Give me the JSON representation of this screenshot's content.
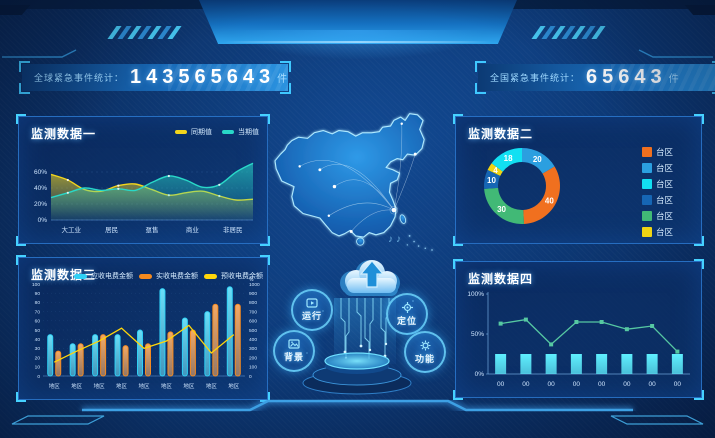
{
  "header": {
    "left_counter": {
      "label": "全球紧急事件统计：",
      "value": "143565643",
      "unit": "件"
    },
    "right_counter": {
      "label": "全国紧急事件统计：",
      "value": "65643",
      "unit": "件"
    }
  },
  "center": {
    "buttons": [
      {
        "label": "运行",
        "icon": "run-icon"
      },
      {
        "label": "定位",
        "icon": "locate-icon"
      },
      {
        "label": "背景",
        "icon": "background-icon"
      },
      {
        "label": "功能",
        "icon": "function-icon"
      }
    ]
  },
  "colors": {
    "accent_cyan": "#3fc8ff",
    "panel_border": "#2d7dd7",
    "background": "#0d3a78"
  },
  "chart_data": [
    {
      "id": "c1",
      "type": "area",
      "title": "监测数据一",
      "legend": [
        {
          "name": "同期值",
          "color": "#f2d51c"
        },
        {
          "name": "当期值",
          "color": "#29d8c8"
        }
      ],
      "categories": [
        "大工业",
        "居民",
        "趸售",
        "商业",
        "非居民"
      ],
      "y_ticks": [
        {
          "v": 0,
          "label": "0%"
        },
        {
          "v": 20,
          "label": "20%"
        },
        {
          "v": 40,
          "label": "40%"
        },
        {
          "v": 60,
          "label": "60%"
        }
      ],
      "y_max": 85,
      "series": [
        {
          "name": "同期值",
          "color": "#f2d51c",
          "values": [
            57,
            50,
            38,
            36,
            43,
            45,
            38,
            31,
            34,
            36,
            30,
            25,
            26
          ]
        },
        {
          "name": "当期值",
          "color": "#29d8c8",
          "values": [
            28,
            34,
            40,
            37,
            39,
            37,
            47,
            55,
            50,
            41,
            44,
            60,
            71
          ]
        }
      ]
    },
    {
      "id": "c2",
      "type": "pie",
      "title": "监测数据二",
      "slices": [
        {
          "label": "台区",
          "value": 20,
          "color": "#2b9fe0"
        },
        {
          "label": "台区",
          "value": 40,
          "color": "#f0701f"
        },
        {
          "label": "台区",
          "value": 30,
          "color": "#41b976"
        },
        {
          "label": "台区",
          "value": 10,
          "color": "#1666b4"
        },
        {
          "label": "台区",
          "value": 4,
          "color": "#efd414"
        },
        {
          "label": "台区",
          "value": 18,
          "color": "#12e0f2"
        }
      ],
      "legend": [
        {
          "name": "台区",
          "color": "#f0701f"
        },
        {
          "name": "台区",
          "color": "#2b9fe0"
        },
        {
          "name": "台区",
          "color": "#12e0f2"
        },
        {
          "name": "台区",
          "color": "#1666b4"
        },
        {
          "name": "台区",
          "color": "#41b976"
        },
        {
          "name": "台区",
          "color": "#efd414"
        }
      ]
    },
    {
      "id": "c3",
      "type": "bar-line",
      "title": "监测数据三",
      "legend": [
        {
          "name": "应收电费金额",
          "color": "#2fd0f5"
        },
        {
          "name": "实收电费金额",
          "color": "#f58a1f"
        },
        {
          "name": "预收电费余额",
          "color": "#ffd60a"
        }
      ],
      "categories": [
        "地区",
        "地区",
        "地区",
        "地区",
        "地区",
        "地区",
        "地区",
        "地区",
        "地区"
      ],
      "left_axis": {
        "min": 0,
        "max": 100,
        "step": 10
      },
      "right_axis": {
        "min": 0,
        "max": 1000,
        "step": 100,
        "unit": "%"
      },
      "series": [
        {
          "name": "应收电费金额",
          "type": "bar",
          "color": "#2fd0f5",
          "values": [
            45,
            35,
            45,
            45,
            50,
            95,
            63,
            70,
            97
          ]
        },
        {
          "name": "实收电费金额",
          "type": "bar",
          "color": "#f58a1f",
          "values": [
            27,
            35,
            45,
            33,
            35,
            48,
            50,
            78,
            78
          ]
        },
        {
          "name": "预收电费余额",
          "type": "line",
          "color": "#ffd60a",
          "axis": "right",
          "values": [
            150,
            270,
            380,
            520,
            300,
            380,
            550,
            250,
            450
          ]
        }
      ]
    },
    {
      "id": "c4",
      "type": "bar-line",
      "title": "监测数据四",
      "categories": [
        "00",
        "00",
        "00",
        "00",
        "00",
        "00",
        "00",
        "00"
      ],
      "y_ticks": [
        {
          "v": 0,
          "label": "0%"
        },
        {
          "v": 50,
          "label": "50%"
        },
        {
          "v": 100,
          "label": "100%"
        }
      ],
      "series": [
        {
          "name": "bars",
          "type": "bar",
          "color": "#0fe0ff",
          "values": [
            25,
            25,
            25,
            25,
            25,
            25,
            25,
            25
          ]
        },
        {
          "name": "line",
          "type": "line",
          "color": "#56c8a2",
          "values": [
            63,
            68,
            37,
            65,
            65,
            56,
            60,
            28
          ]
        }
      ]
    }
  ]
}
